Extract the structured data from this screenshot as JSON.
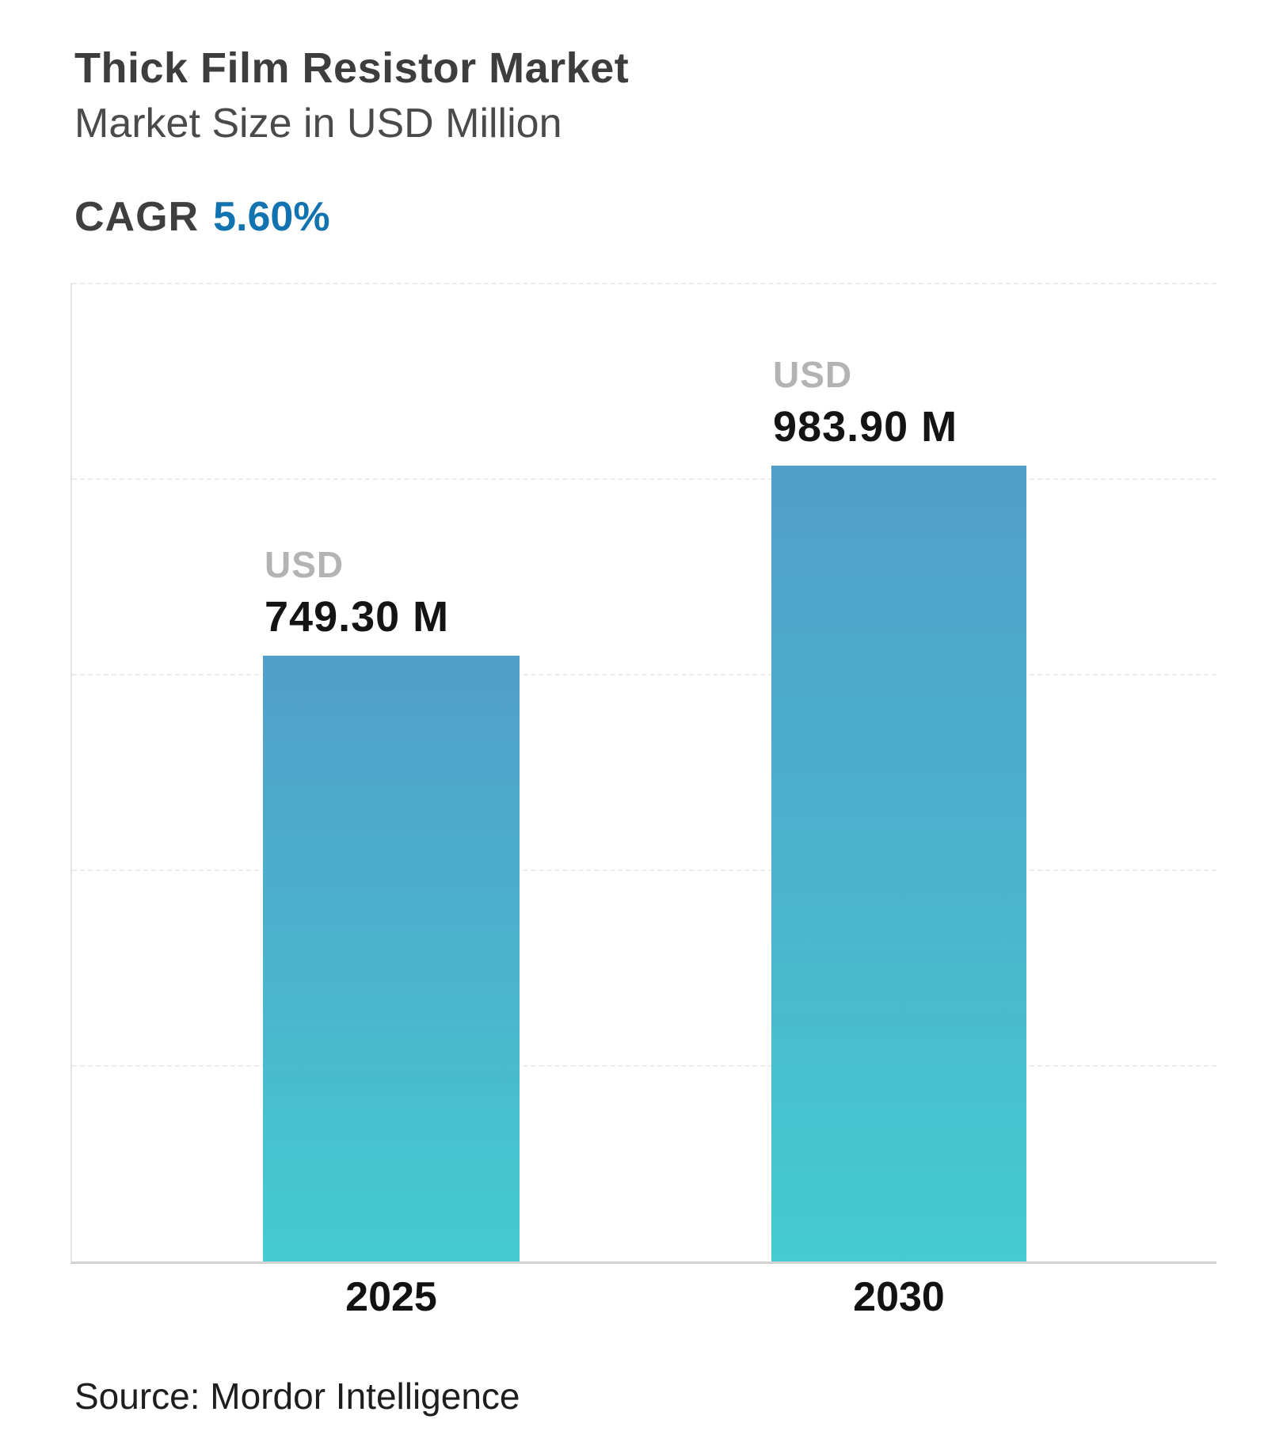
{
  "header": {
    "title": "Thick Film Resistor Market",
    "subtitle": "Market Size in USD Million",
    "cagr_label": "CAGR",
    "cagr_value": "5.60%"
  },
  "footer": {
    "source": "Source: Mordor Intelligence"
  },
  "chart_data": {
    "type": "bar",
    "title": "Thick Film Resistor Market",
    "subtitle": "Market Size in USD Million",
    "unit": "USD Million",
    "cagr_percent": 5.6,
    "categories": [
      "2025",
      "2030"
    ],
    "values": [
      749.3,
      983.9
    ],
    "bars": [
      {
        "category": "2025",
        "currency_label": "USD",
        "value_label": "749.30 M",
        "value": 749.3
      },
      {
        "category": "2030",
        "currency_label": "USD",
        "value_label": "983.90 M",
        "value": 983.9
      }
    ],
    "xlabel": "",
    "ylabel": "",
    "ylim": [
      0,
      1210
    ],
    "y_axis_labels_visible": false,
    "gridline_interval_estimated": 242,
    "grid": "horizontal-dashed",
    "legend": "none",
    "bar_gradient_top": "#519fc9",
    "bar_gradient_bottom": "#45cbd1",
    "accent_color": "#1273b0",
    "source": "Source: Mordor Intelligence"
  }
}
